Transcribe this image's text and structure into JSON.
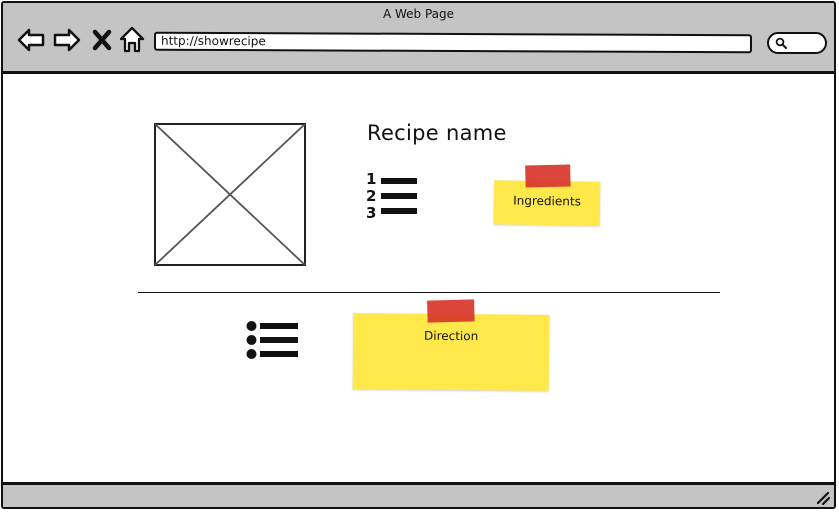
{
  "window": {
    "title": "A Web Page"
  },
  "browser": {
    "url": "http://showrecipe",
    "icons": [
      "back-arrow-icon",
      "forward-arrow-icon",
      "close-icon",
      "home-icon",
      "search-icon",
      "resize-grip-icon"
    ]
  },
  "recipe": {
    "name": "Recipe name",
    "image_icon": "image-placeholder-icon",
    "ingredients_icon": "ordered-list-icon",
    "direction_icon": "bullet-list-icon"
  },
  "notes": {
    "ingredients": "Ingredients",
    "direction": "Direction"
  },
  "colors": {
    "chrome": "#c4c4c4",
    "sticky_note": "#ffe94a",
    "tape": "#d8352a",
    "ink": "#111111"
  }
}
